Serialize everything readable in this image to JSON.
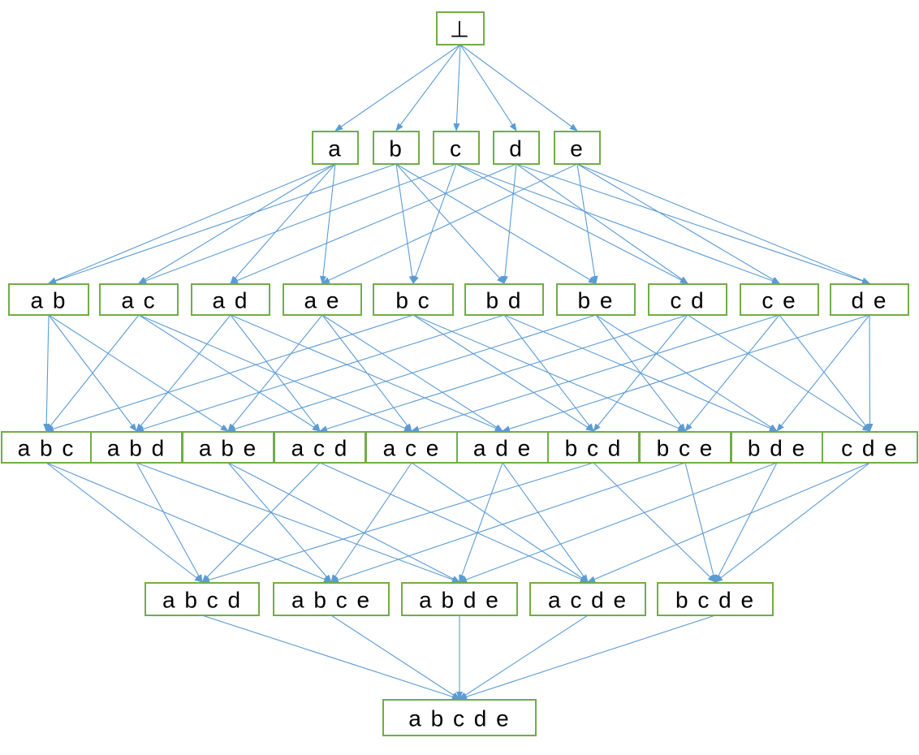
{
  "diagram": {
    "title": "",
    "type": "hasse-lattice",
    "colors": {
      "node_border": "#70ad47",
      "edge": "#5b9bd5",
      "text": "#000000"
    },
    "levels": [
      [
        "⊥"
      ],
      [
        "a",
        "b",
        "c",
        "d",
        "e"
      ],
      [
        "a b",
        "a c",
        "a d",
        "a e",
        "b c",
        "b d",
        "b e",
        "c d",
        "c e",
        "d e"
      ],
      [
        "a b c",
        "a b d",
        "a b e",
        "a c d",
        "a c e",
        "a d e",
        "b c d",
        "b c e",
        "b d e",
        "c d e"
      ],
      [
        "a b c d",
        "a b c e",
        "a b d e",
        "a c d e",
        "b c d e"
      ],
      [
        "a b c d e"
      ]
    ]
  }
}
